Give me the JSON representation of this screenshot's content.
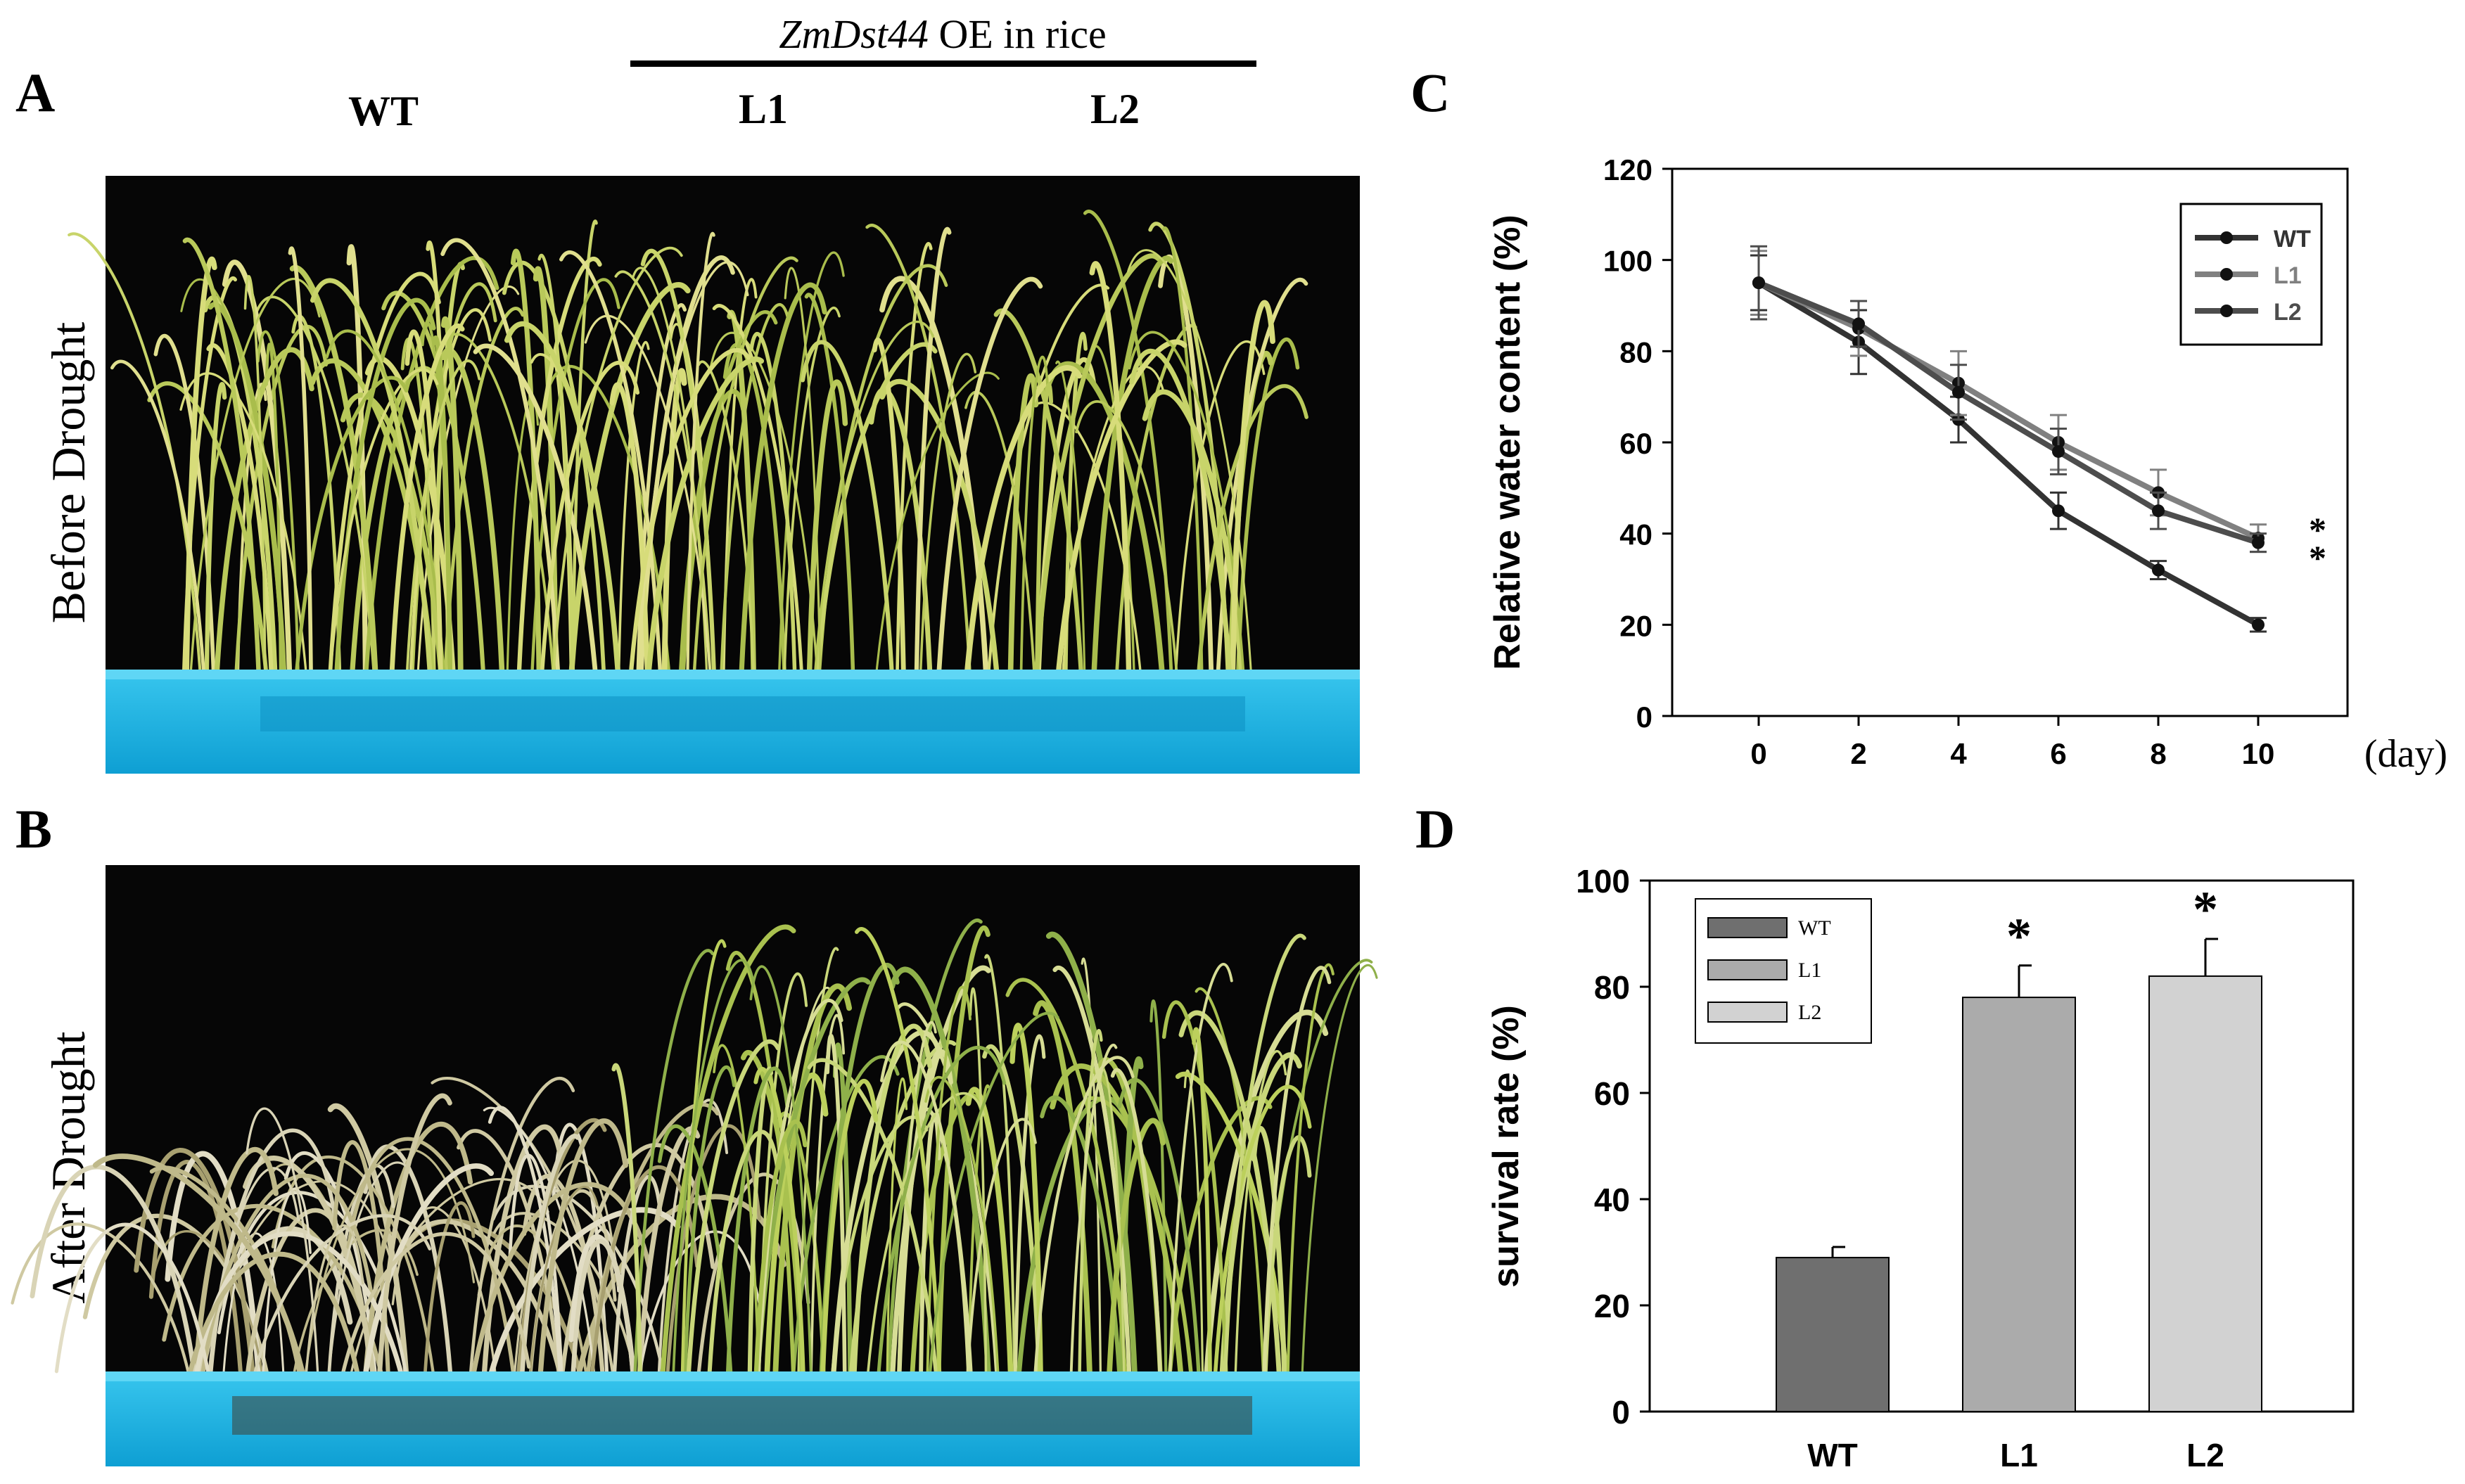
{
  "figure": {
    "panel_letters": {
      "a": "A",
      "b": "B",
      "c": "C",
      "d": "D"
    },
    "header": {
      "gene": "ZmDst44",
      "suffix": " OE in rice",
      "wt": "WT",
      "l1": "L1",
      "l2": "L2"
    },
    "photo_labels": {
      "before": "Before Drought",
      "after": "After Drought"
    },
    "colors": {
      "background": "#000000",
      "tray": "#1fb8e6",
      "tray_dark": "#0f97c8",
      "leaf_healthy": "#c8d46a",
      "leaf_dry": "#cfc9a2"
    }
  },
  "chart_data": [
    {
      "id": "C",
      "type": "line",
      "title": "",
      "xlabel": "(day)",
      "ylabel": "Relative water content (%)",
      "x": [
        0,
        2,
        4,
        6,
        8,
        10
      ],
      "ylim": [
        0,
        120
      ],
      "yticks": [
        0,
        20,
        40,
        60,
        80,
        100,
        120
      ],
      "series": [
        {
          "name": "WT",
          "color": "#333333",
          "values": [
            95,
            82,
            65,
            45,
            32,
            20
          ],
          "errors": [
            6,
            7,
            5,
            4,
            2,
            1.5
          ]
        },
        {
          "name": "L1",
          "color": "#808080",
          "values": [
            95,
            85,
            73,
            60,
            49,
            39
          ],
          "errors": [
            7,
            6,
            7,
            6,
            5,
            3
          ]
        },
        {
          "name": "L2",
          "color": "#4d4d4d",
          "values": [
            95,
            86,
            71,
            58,
            45,
            38
          ],
          "errors": [
            8,
            5,
            6,
            5,
            4,
            2
          ]
        }
      ],
      "significance": [
        "*",
        "*"
      ],
      "legend": "top-right"
    },
    {
      "id": "D",
      "type": "bar",
      "title": "",
      "xlabel": "",
      "ylabel": "survival rate (%)",
      "categories": [
        "WT",
        "L1",
        "L2"
      ],
      "values": [
        29,
        78,
        82
      ],
      "errors": [
        2,
        6,
        7
      ],
      "colors": [
        "#6f6f6f",
        "#ababab",
        "#d2d2d2"
      ],
      "significance": [
        "",
        "*",
        "*"
      ],
      "ylim": [
        0,
        100
      ],
      "yticks": [
        0,
        20,
        40,
        60,
        80,
        100
      ],
      "legend": "top-left"
    }
  ]
}
